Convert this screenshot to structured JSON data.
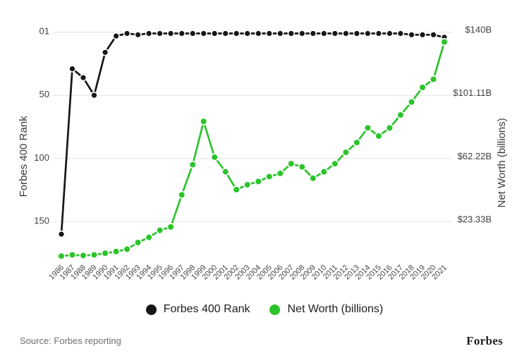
{
  "chart_data": {
    "type": "line",
    "grid": "horizontal",
    "legend_position": "bottom",
    "x": [
      "1986",
      "1987",
      "1988",
      "1989",
      "1990",
      "1991",
      "1992",
      "1993",
      "1994",
      "1995",
      "1996",
      "1997",
      "1998",
      "1999",
      "2000",
      "2001",
      "2002",
      "2003",
      "2004",
      "2005",
      "2006",
      "2007",
      "2008",
      "2009",
      "2010",
      "2011",
      "2012",
      "2013",
      "2014",
      "2015",
      "2016",
      "2017",
      "2018",
      "2019",
      "2020",
      "2021"
    ],
    "series": [
      {
        "name": "Forbes 400 Rank",
        "axis": "left",
        "color": "#161616",
        "values": [
          160,
          29,
          36,
          50,
          16,
          3,
          1,
          2,
          1,
          1,
          1,
          1,
          1,
          1,
          1,
          1,
          1,
          1,
          1,
          1,
          1,
          1,
          1,
          1,
          1,
          1,
          1,
          1,
          1,
          1,
          1,
          1,
          2,
          2,
          2,
          4
        ]
      },
      {
        "name": "Net Worth (billions)",
        "axis": "right",
        "color": "#2bc42b",
        "values": [
          2,
          2.8,
          2.4,
          2.8,
          3.8,
          4.8,
          6.3,
          10.4,
          13.6,
          17.9,
          20,
          39.8,
          58.4,
          85,
          63,
          54,
          43,
          46,
          48,
          51,
          53,
          59,
          57,
          50,
          54,
          59,
          66,
          72,
          81,
          76,
          81,
          89,
          97,
          106,
          111,
          134
        ]
      }
    ],
    "left_axis": {
      "title": "Forbes 400 Rank",
      "tick_labels": [
        "01",
        "50",
        "100",
        "150"
      ],
      "tick_values": [
        0,
        50,
        100,
        150
      ],
      "inverted": true
    },
    "right_axis": {
      "title": "Net Worth (billions)",
      "tick_labels": [
        "$140B",
        "$101.11B",
        "$62.22B",
        "$23.33B"
      ],
      "tick_values": [
        140,
        101.11,
        62.22,
        23.33
      ]
    },
    "colors": {
      "gridline": "#e4e4e4",
      "tick_label": "#3f3f3f",
      "axis_title": "#3a3a3a",
      "year_label": "#474747"
    }
  },
  "legend": {
    "items": [
      {
        "label": "Forbes 400 Rank",
        "color": "#161616"
      },
      {
        "label": "Net Worth (billions)",
        "color": "#2bc42b"
      }
    ]
  },
  "footer": {
    "source": "Source: Forbes reporting",
    "brand": "Forbes"
  }
}
